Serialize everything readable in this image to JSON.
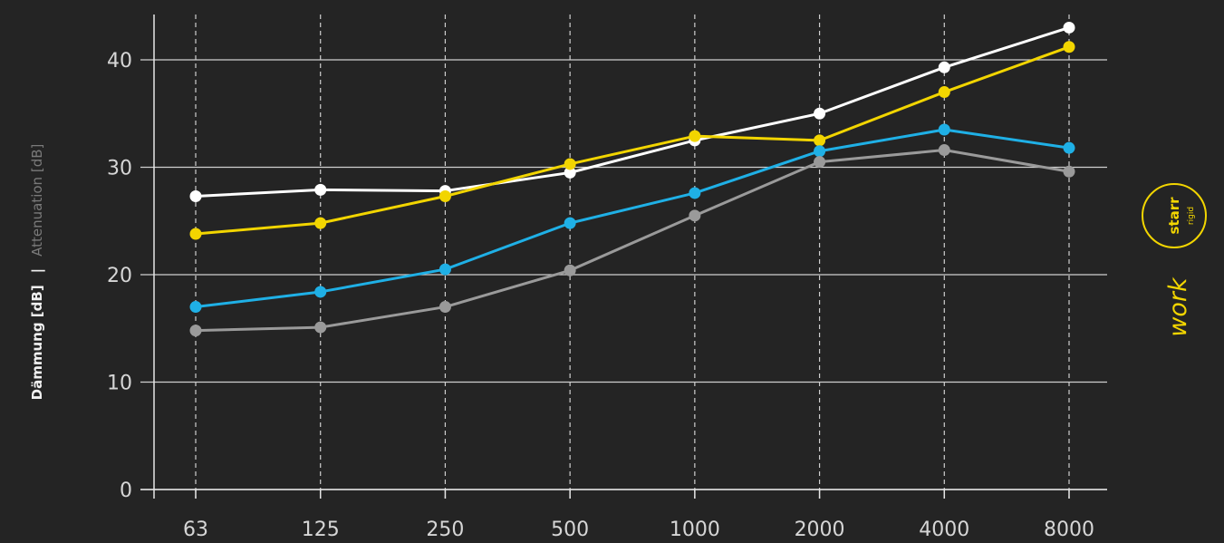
{
  "chart_data": {
    "type": "line",
    "title": "",
    "ylabel": "Dämmung [dB]",
    "ylabel_separator": "|",
    "ylabel_secondary": "Attenuation [dB]",
    "xlabel": "",
    "categories": [
      "63",
      "125",
      "250",
      "500",
      "1000",
      "2000",
      "4000",
      "8000"
    ],
    "ylim": [
      0,
      43
    ],
    "yticks": [
      0,
      10,
      20,
      30,
      40
    ],
    "grid": {
      "horizontal": true,
      "vertical_dashed": true
    },
    "legend": "none",
    "series": [
      {
        "color": "#ffffff",
        "values": [
          27.3,
          27.9,
          27.8,
          29.5,
          32.5,
          35.0,
          39.3,
          43.0
        ]
      },
      {
        "color": "#f2d500",
        "values": [
          23.8,
          24.8,
          27.3,
          30.3,
          32.9,
          32.5,
          37.0,
          41.2
        ]
      },
      {
        "color": "#1fb0e6",
        "values": [
          17.0,
          18.4,
          20.5,
          24.8,
          27.6,
          31.5,
          33.5,
          31.8
        ]
      },
      {
        "color": "#9a9a9a",
        "values": [
          14.8,
          15.1,
          17.0,
          20.4,
          25.5,
          30.5,
          31.6,
          29.6
        ]
      }
    ]
  },
  "badge": {
    "top": "starr",
    "sub": "rigid",
    "word": "work",
    "color": "#f2d500"
  },
  "colors": {
    "background": "#242424",
    "axis": "#e6e6e6",
    "grid": "#cfcfcf",
    "text": "#d6d6d6"
  }
}
